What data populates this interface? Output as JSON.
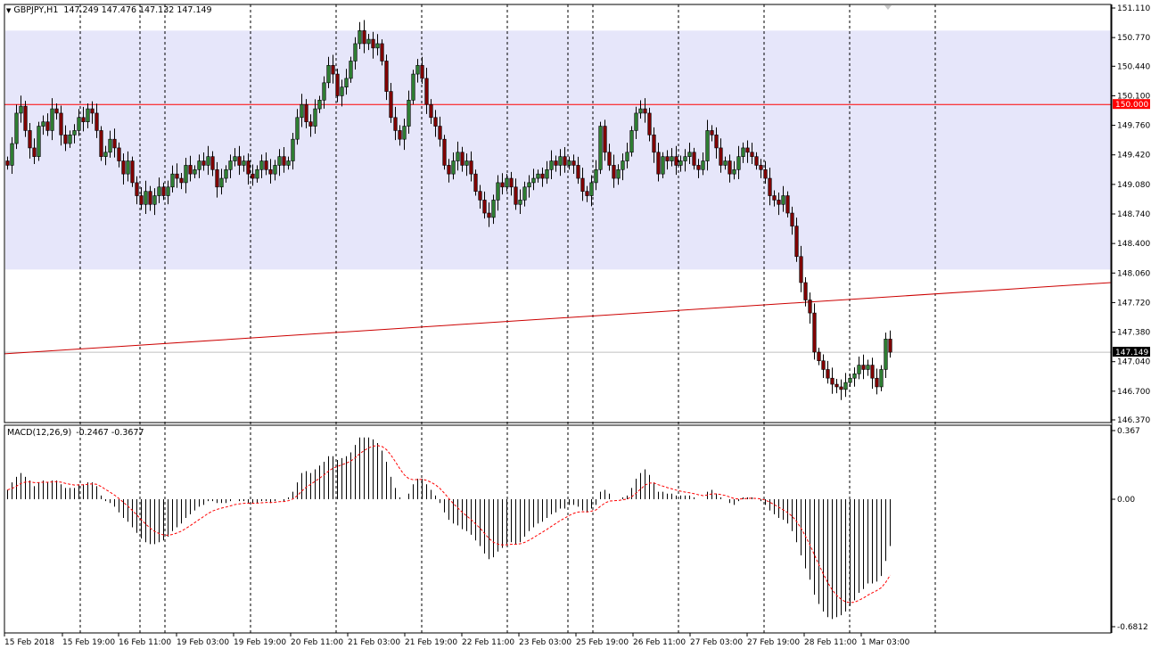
{
  "header": {
    "symbol": "GBPJPY,H1",
    "ohlc": "147.249 147.476 147.132 147.149"
  },
  "indicator": {
    "name": "MACD(12,26,9)",
    "values": "-0.2467 -0.3677"
  },
  "colors": {
    "background": "#ffffff",
    "zone_fill": "#e6e6fa",
    "level_line": "#ff0000",
    "trend_line": "#cc0000",
    "bull_candle": "#2e7d32",
    "bear_candle": "#7f0000",
    "grid_line": "#000000",
    "signal_line": "#ff0000",
    "histogram": "#000000"
  },
  "chart_data": [
    {
      "type": "candlestick",
      "symbol": "GBPJPY",
      "timeframe": "H1",
      "ylim": [
        146.37,
        151.11
      ],
      "y_ticks": [
        "151.110",
        "150.770",
        "150.440",
        "150.100",
        "149.760",
        "149.420",
        "149.080",
        "148.740",
        "148.400",
        "148.060",
        "147.720",
        "147.380",
        "147.040",
        "146.700",
        "146.370"
      ],
      "x_ticks": [
        "15 Feb 2018",
        "15 Feb 19:00",
        "16 Feb 11:00",
        "19 Feb 03:00",
        "19 Feb 19:00",
        "20 Feb 11:00",
        "21 Feb 03:00",
        "21 Feb 19:00",
        "22 Feb 11:00",
        "23 Feb 03:00",
        "25 Feb 19:00",
        "26 Feb 11:00",
        "27 Feb 03:00",
        "27 Feb 19:00",
        "28 Feb 11:00",
        "1 Mar 03:00"
      ],
      "grid": "vertical dashed",
      "horizontal_level": {
        "value": 150.0,
        "label": "150.000"
      },
      "current_price": {
        "value": 147.149,
        "label": "147.149"
      },
      "zone": {
        "from": 148.1,
        "to": 150.85
      },
      "trendline": {
        "start": 147.13,
        "end": 147.95
      },
      "closes": [
        149.3,
        149.55,
        149.9,
        149.98,
        149.7,
        149.5,
        149.4,
        149.75,
        149.8,
        149.7,
        149.95,
        149.9,
        149.65,
        149.55,
        149.65,
        149.7,
        149.85,
        149.8,
        149.95,
        149.9,
        149.7,
        149.4,
        149.45,
        149.6,
        149.5,
        149.35,
        149.2,
        149.35,
        149.1,
        148.95,
        148.85,
        149.0,
        148.85,
        148.95,
        149.05,
        148.95,
        149.05,
        149.2,
        149.15,
        149.1,
        149.3,
        149.2,
        149.25,
        149.35,
        149.3,
        149.4,
        149.25,
        149.05,
        149.15,
        149.25,
        149.35,
        149.4,
        149.3,
        149.35,
        149.2,
        149.15,
        149.25,
        149.35,
        149.25,
        149.2,
        149.3,
        149.4,
        149.3,
        149.35,
        149.6,
        149.85,
        150.0,
        149.8,
        149.75,
        149.95,
        150.05,
        150.25,
        150.45,
        150.35,
        150.1,
        150.2,
        150.3,
        150.5,
        150.7,
        150.85,
        150.7,
        150.75,
        150.65,
        150.7,
        150.5,
        150.15,
        149.85,
        149.7,
        149.6,
        149.75,
        150.05,
        150.35,
        150.45,
        150.3,
        150.0,
        149.85,
        149.75,
        149.6,
        149.3,
        149.2,
        149.35,
        149.45,
        149.3,
        149.35,
        149.2,
        149.0,
        148.9,
        148.75,
        148.7,
        148.9,
        149.1,
        149.05,
        149.15,
        149.05,
        148.85,
        148.9,
        149.05,
        149.1,
        149.15,
        149.2,
        149.15,
        149.25,
        149.35,
        149.3,
        149.4,
        149.3,
        149.35,
        149.3,
        149.15,
        149.0,
        148.95,
        149.1,
        149.25,
        149.75,
        149.45,
        149.3,
        149.15,
        149.25,
        149.35,
        149.45,
        149.7,
        149.9,
        149.95,
        149.9,
        149.65,
        149.45,
        149.2,
        149.4,
        149.35,
        149.4,
        149.3,
        149.35,
        149.4,
        149.45,
        149.3,
        149.25,
        149.35,
        149.7,
        149.65,
        149.5,
        149.3,
        149.35,
        149.2,
        149.25,
        149.4,
        149.5,
        149.45,
        149.4,
        149.3,
        149.25,
        149.15,
        148.95,
        148.9,
        148.85,
        148.95,
        148.75,
        148.6,
        148.25,
        147.95,
        147.75,
        147.6,
        147.15,
        147.05,
        146.95,
        146.85,
        146.78,
        146.75,
        146.72,
        146.8,
        146.85,
        146.9,
        147.0,
        146.95,
        147.0,
        146.85,
        146.75,
        146.95,
        147.3,
        147.149
      ],
      "series": [
        {
          "name": "MACD(12,26,9)",
          "ylim": [
            -0.6812,
            0.367
          ],
          "y_ticks": [
            "0.367",
            "0.00",
            "-0.6812"
          ],
          "histogram": [
            0.05,
            0.09,
            0.12,
            0.14,
            0.12,
            0.1,
            0.07,
            0.09,
            0.1,
            0.09,
            0.1,
            0.1,
            0.08,
            0.06,
            0.06,
            0.06,
            0.08,
            0.08,
            0.09,
            0.09,
            0.07,
            0.02,
            -0.01,
            -0.02,
            -0.04,
            -0.07,
            -0.1,
            -0.12,
            -0.15,
            -0.18,
            -0.21,
            -0.23,
            -0.24,
            -0.24,
            -0.23,
            -0.22,
            -0.2,
            -0.17,
            -0.15,
            -0.13,
            -0.1,
            -0.08,
            -0.06,
            -0.04,
            -0.03,
            -0.01,
            -0.01,
            -0.02,
            -0.02,
            -0.02,
            -0.01,
            0.0,
            -0.01,
            -0.01,
            -0.02,
            -0.02,
            -0.02,
            -0.01,
            -0.01,
            -0.02,
            -0.01,
            0.0,
            -0.01,
            0.01,
            0.04,
            0.09,
            0.14,
            0.15,
            0.14,
            0.16,
            0.18,
            0.2,
            0.23,
            0.23,
            0.21,
            0.22,
            0.23,
            0.25,
            0.29,
            0.33,
            0.33,
            0.33,
            0.32,
            0.3,
            0.26,
            0.2,
            0.12,
            0.06,
            0.01,
            0.0,
            0.03,
            0.08,
            0.11,
            0.11,
            0.08,
            0.05,
            0.02,
            -0.02,
            -0.07,
            -0.11,
            -0.13,
            -0.14,
            -0.16,
            -0.17,
            -0.19,
            -0.22,
            -0.25,
            -0.29,
            -0.32,
            -0.31,
            -0.28,
            -0.26,
            -0.24,
            -0.23,
            -0.24,
            -0.23,
            -0.2,
            -0.17,
            -0.15,
            -0.13,
            -0.12,
            -0.1,
            -0.08,
            -0.07,
            -0.05,
            -0.05,
            -0.03,
            -0.03,
            -0.04,
            -0.06,
            -0.07,
            -0.05,
            -0.03,
            0.04,
            0.05,
            0.03,
            0.0,
            0.0,
            0.01,
            0.02,
            0.06,
            0.11,
            0.14,
            0.16,
            0.13,
            0.09,
            0.04,
            0.04,
            0.03,
            0.03,
            0.02,
            0.02,
            0.02,
            0.02,
            0.01,
            0.0,
            0.0,
            0.04,
            0.05,
            0.03,
            0.01,
            0.0,
            -0.02,
            -0.03,
            -0.01,
            0.01,
            0.01,
            0.01,
            0.0,
            -0.01,
            -0.03,
            -0.06,
            -0.08,
            -0.1,
            -0.11,
            -0.13,
            -0.17,
            -0.23,
            -0.3,
            -0.37,
            -0.43,
            -0.51,
            -0.56,
            -0.6,
            -0.63,
            -0.64,
            -0.63,
            -0.62,
            -0.6,
            -0.57,
            -0.54,
            -0.5,
            -0.48,
            -0.45,
            -0.45,
            -0.44,
            -0.41,
            -0.33,
            -0.25
          ]
        }
      ]
    }
  ]
}
